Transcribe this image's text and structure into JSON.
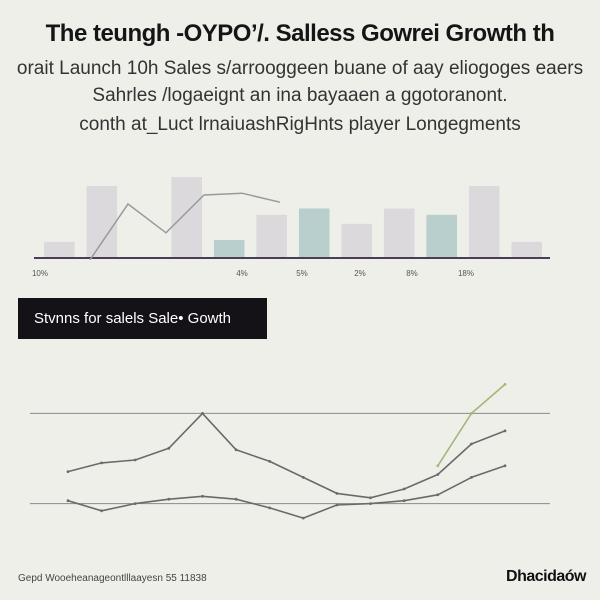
{
  "title": "The teungh -OYPO’/. Salless Gowrei Growth th",
  "subtitle_lines": [
    "orait Launch 10h Sales s/arrooggeen buane of aay eliogoges eaers",
    "Sahrles /logaeignt an ina bayaaen a ggotoranont.",
    "conth at_Luct lrnaiuashRigHnts player Longegments"
  ],
  "banner_label": "Stvnns for salels Sale• Gowth",
  "footer_text": "Gepd Wooeheanageontlllaayesn 55 11838",
  "logo_text": "Dhacidaów",
  "colors": {
    "background": "#efefea",
    "bar_gray": "#dcd9dd",
    "bar_teal": "#b8cfcd",
    "baseline": "#4a3d58",
    "line_dark": "#6a6a6a",
    "line_olive": "#a2b879",
    "banner_bg": "#141216"
  },
  "chart_data": [
    {
      "type": "bar",
      "title": "",
      "categories": [
        "10%",
        "",
        "",
        "4%",
        "",
        "5%",
        "",
        "2%",
        "",
        "8%",
        "",
        "18%"
      ],
      "tick_labels": [
        "10%",
        "4%",
        "5%",
        "2%",
        "8%",
        "18%"
      ],
      "series": [
        {
          "values": [
            18,
            80,
            0,
            90,
            0,
            48,
            0,
            38,
            55,
            32,
            80,
            18
          ],
          "color": "#dcd9dd"
        },
        {
          "values": [
            0,
            0,
            0,
            0,
            20,
            0,
            55,
            0,
            0,
            48,
            0,
            0
          ],
          "color": "#b8cfcd"
        }
      ],
      "overlay_line": [
        {
          "x": 0,
          "y": -2
        },
        {
          "x": 1,
          "y": 60
        },
        {
          "x": 2,
          "y": 28
        },
        {
          "x": 3,
          "y": 70
        },
        {
          "x": 4,
          "y": 72
        },
        {
          "x": 5,
          "y": 62
        }
      ],
      "ylim": [
        0,
        100
      ],
      "grid": false
    },
    {
      "type": "line",
      "title": "",
      "x": [
        0,
        1,
        2,
        3,
        4,
        5,
        6,
        7,
        8,
        9,
        10,
        11,
        12,
        13
      ],
      "series": [
        {
          "color": "#6a6a6a",
          "values": [
            56,
            62,
            64,
            72,
            96,
            71,
            63,
            52,
            41,
            38,
            44,
            54,
            75,
            84
          ]
        },
        {
          "color": "#6a6a6a",
          "values": [
            36,
            29,
            34,
            37,
            39,
            37,
            31,
            24,
            33,
            34,
            36,
            40,
            52,
            60
          ]
        },
        {
          "color": "#a2b879",
          "values": [
            null,
            null,
            null,
            null,
            null,
            null,
            null,
            null,
            null,
            null,
            null,
            60,
            96,
            116
          ]
        }
      ],
      "reference_lines": [
        96,
        34
      ],
      "ylim": [
        0,
        130
      ],
      "grid": false
    }
  ]
}
